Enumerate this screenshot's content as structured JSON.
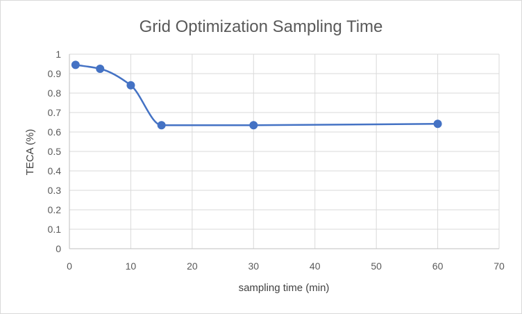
{
  "chart_data": {
    "type": "line",
    "title": "Grid Optimization Sampling Time",
    "xlabel": "sampling time (min)",
    "ylabel": "TECA (%)",
    "xlim": [
      0,
      70
    ],
    "ylim": [
      0,
      1
    ],
    "x_ticks": [
      "0",
      "10",
      "20",
      "30",
      "40",
      "50",
      "60",
      "70"
    ],
    "y_ticks": [
      "0",
      "0.1",
      "0.2",
      "0.3",
      "0.4",
      "0.5",
      "0.6",
      "0.7",
      "0.8",
      "0.9",
      "1"
    ],
    "grid": true,
    "smooth": true,
    "series": [
      {
        "x": [
          1,
          5,
          10,
          15,
          30,
          60
        ],
        "y": [
          0.945,
          0.925,
          0.84,
          0.635,
          0.635,
          0.642
        ],
        "color": "#4472c4"
      }
    ]
  }
}
